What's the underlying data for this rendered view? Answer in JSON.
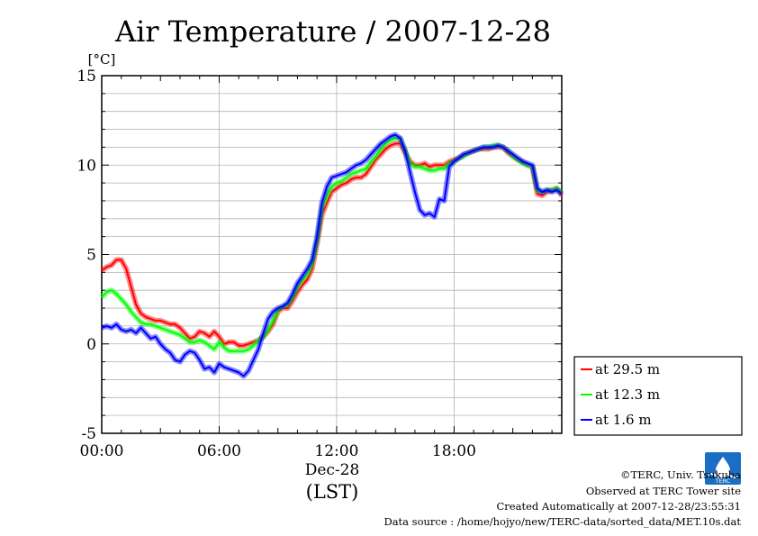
{
  "chart_data": {
    "type": "line",
    "title": "Air Temperature / 2007-12-28",
    "ylabel": "[°C]",
    "xlabel": "(LST)",
    "date_label": "Dec-28",
    "ylim": [
      -5,
      15
    ],
    "yticks": [
      15,
      10,
      5,
      0,
      -5
    ],
    "xlim_hours": [
      0,
      23.5
    ],
    "xticks": [
      {
        "hour": 0,
        "label": "00:00"
      },
      {
        "hour": 6,
        "label": "06:00"
      },
      {
        "hour": 12,
        "label": "12:00"
      },
      {
        "hour": 18,
        "label": "18:00"
      }
    ],
    "grid": true,
    "legend_position": "right",
    "series": [
      {
        "name": "at 29.5 m",
        "color": "#ff0000",
        "x": [
          0,
          0.25,
          0.5,
          0.75,
          1,
          1.25,
          1.5,
          1.75,
          2,
          2.25,
          2.5,
          2.75,
          3,
          3.25,
          3.5,
          3.75,
          4,
          4.25,
          4.5,
          4.75,
          5,
          5.25,
          5.5,
          5.75,
          6,
          6.25,
          6.5,
          6.75,
          7,
          7.25,
          7.5,
          7.75,
          8,
          8.25,
          8.5,
          8.75,
          9,
          9.25,
          9.5,
          9.75,
          10,
          10.25,
          10.5,
          10.75,
          11,
          11.25,
          11.5,
          11.75,
          12,
          12.25,
          12.5,
          12.75,
          13,
          13.25,
          13.5,
          13.75,
          14,
          14.25,
          14.5,
          14.75,
          15,
          15.25,
          15.5,
          15.75,
          16,
          16.25,
          16.5,
          16.75,
          17,
          17.25,
          17.5,
          17.75,
          18,
          18.25,
          18.5,
          18.75,
          19,
          19.25,
          19.5,
          19.75,
          20,
          20.25,
          20.5,
          20.75,
          21,
          21.25,
          21.5,
          21.75,
          22,
          22.25,
          22.5,
          22.75,
          23,
          23.25,
          23.5
        ],
        "y": [
          4.1,
          4.3,
          4.4,
          4.7,
          4.7,
          4.2,
          3.2,
          2.2,
          1.7,
          1.5,
          1.4,
          1.3,
          1.3,
          1.2,
          1.1,
          1.1,
          0.9,
          0.6,
          0.3,
          0.4,
          0.7,
          0.6,
          0.4,
          0.7,
          0.4,
          0.0,
          0.1,
          0.1,
          -0.1,
          -0.1,
          0.0,
          0.1,
          0.2,
          0.4,
          0.7,
          1.1,
          1.8,
          2.0,
          2.0,
          2.4,
          2.9,
          3.3,
          3.6,
          4.2,
          5.6,
          7.2,
          7.9,
          8.5,
          8.7,
          8.9,
          9.0,
          9.2,
          9.3,
          9.3,
          9.5,
          9.9,
          10.3,
          10.6,
          10.9,
          11.1,
          11.2,
          11.2,
          10.7,
          10.2,
          10.0,
          10.0,
          10.1,
          9.9,
          10.0,
          10.0,
          10.0,
          10.2,
          10.3,
          10.4,
          10.6,
          10.7,
          10.8,
          10.9,
          10.9,
          10.9,
          11.0,
          11.0,
          11.0,
          10.7,
          10.5,
          10.3,
          10.2,
          10.0,
          9.9,
          8.4,
          8.3,
          8.5,
          8.6,
          8.7,
          8.3
        ]
      },
      {
        "name": "at 12.3 m",
        "color": "#00ff00",
        "x": [
          0,
          0.25,
          0.5,
          0.75,
          1,
          1.25,
          1.5,
          1.75,
          2,
          2.25,
          2.5,
          2.75,
          3,
          3.25,
          3.5,
          3.75,
          4,
          4.25,
          4.5,
          4.75,
          5,
          5.25,
          5.5,
          5.75,
          6,
          6.25,
          6.5,
          6.75,
          7,
          7.25,
          7.5,
          7.75,
          8,
          8.25,
          8.5,
          8.75,
          9,
          9.25,
          9.5,
          9.75,
          10,
          10.25,
          10.5,
          10.75,
          11,
          11.25,
          11.5,
          11.75,
          12,
          12.25,
          12.5,
          12.75,
          13,
          13.25,
          13.5,
          13.75,
          14,
          14.25,
          14.5,
          14.75,
          15,
          15.25,
          15.5,
          15.75,
          16,
          16.25,
          16.5,
          16.75,
          17,
          17.25,
          17.5,
          17.75,
          18,
          18.25,
          18.5,
          18.75,
          19,
          19.25,
          19.5,
          19.75,
          20,
          20.25,
          20.5,
          20.75,
          21,
          21.25,
          21.5,
          21.75,
          22,
          22.25,
          22.5,
          22.75,
          23,
          23.25,
          23.5
        ],
        "y": [
          2.6,
          2.9,
          3.0,
          2.8,
          2.5,
          2.2,
          1.8,
          1.5,
          1.2,
          1.1,
          1.1,
          1.0,
          0.9,
          0.8,
          0.7,
          0.6,
          0.5,
          0.3,
          0.1,
          0.1,
          0.2,
          0.1,
          -0.1,
          -0.3,
          0.1,
          -0.2,
          -0.4,
          -0.4,
          -0.4,
          -0.4,
          -0.3,
          -0.1,
          0.2,
          0.4,
          0.8,
          1.3,
          1.9,
          2.1,
          2.2,
          2.6,
          3.2,
          3.6,
          3.9,
          4.5,
          5.8,
          7.6,
          8.3,
          8.8,
          9.0,
          9.1,
          9.3,
          9.5,
          9.6,
          9.7,
          9.8,
          10.2,
          10.5,
          10.9,
          11.2,
          11.4,
          11.5,
          11.5,
          10.8,
          10.1,
          9.9,
          9.9,
          9.8,
          9.7,
          9.7,
          9.8,
          9.8,
          10.1,
          10.2,
          10.4,
          10.5,
          10.7,
          10.8,
          10.9,
          11.0,
          11.0,
          11.1,
          11.1,
          11.0,
          10.8,
          10.5,
          10.3,
          10.1,
          10.0,
          9.9,
          8.6,
          8.5,
          8.6,
          8.6,
          8.7,
          8.4
        ]
      },
      {
        "name": "at 1.6 m",
        "color": "#0000ff",
        "x": [
          0,
          0.25,
          0.5,
          0.75,
          1,
          1.25,
          1.5,
          1.75,
          2,
          2.25,
          2.5,
          2.75,
          3,
          3.25,
          3.5,
          3.75,
          4,
          4.25,
          4.5,
          4.75,
          5,
          5.25,
          5.5,
          5.75,
          6,
          6.25,
          6.5,
          6.75,
          7,
          7.25,
          7.5,
          7.75,
          8,
          8.25,
          8.5,
          8.75,
          9,
          9.25,
          9.5,
          9.75,
          10,
          10.25,
          10.5,
          10.75,
          11,
          11.25,
          11.5,
          11.75,
          12,
          12.25,
          12.5,
          12.75,
          13,
          13.25,
          13.5,
          13.75,
          14,
          14.25,
          14.5,
          14.75,
          15,
          15.25,
          15.5,
          15.75,
          16,
          16.25,
          16.5,
          16.75,
          17,
          17.25,
          17.5,
          17.75,
          18,
          18.25,
          18.5,
          18.75,
          19,
          19.25,
          19.5,
          19.75,
          20,
          20.25,
          20.5,
          20.75,
          21,
          21.25,
          21.5,
          21.75,
          22,
          22.25,
          22.5,
          22.75,
          23,
          23.25,
          23.5
        ],
        "y": [
          0.9,
          1.0,
          0.9,
          1.1,
          0.8,
          0.7,
          0.8,
          0.6,
          0.9,
          0.6,
          0.3,
          0.4,
          0.0,
          -0.3,
          -0.5,
          -0.9,
          -1.0,
          -0.6,
          -0.4,
          -0.5,
          -0.9,
          -1.4,
          -1.3,
          -1.6,
          -1.1,
          -1.3,
          -1.4,
          -1.5,
          -1.6,
          -1.8,
          -1.5,
          -0.9,
          -0.3,
          0.6,
          1.4,
          1.8,
          2.0,
          2.1,
          2.3,
          2.8,
          3.4,
          3.8,
          4.2,
          4.7,
          6.0,
          7.9,
          8.8,
          9.3,
          9.4,
          9.5,
          9.6,
          9.8,
          10.0,
          10.1,
          10.3,
          10.6,
          10.9,
          11.2,
          11.4,
          11.6,
          11.7,
          11.5,
          10.8,
          9.6,
          8.5,
          7.5,
          7.2,
          7.3,
          7.1,
          8.1,
          8.0,
          9.9,
          10.2,
          10.4,
          10.6,
          10.7,
          10.8,
          10.9,
          11.0,
          11.0,
          11.0,
          11.1,
          11.0,
          10.8,
          10.6,
          10.4,
          10.2,
          10.1,
          10.0,
          8.7,
          8.5,
          8.6,
          8.5,
          8.6,
          8.4
        ]
      }
    ]
  },
  "footer": {
    "copyright": "©TERC, Univ. Tsukuba",
    "observed": "Observed at TERC Tower site",
    "created": "Created Automatically at 2007-12-28/23:55:31",
    "source": "Data source : /home/hojyo/new/TERC-data/sorted_data/MET.10s.dat",
    "logo_text": "TERC",
    "logo_color": "#1a6fc4"
  }
}
